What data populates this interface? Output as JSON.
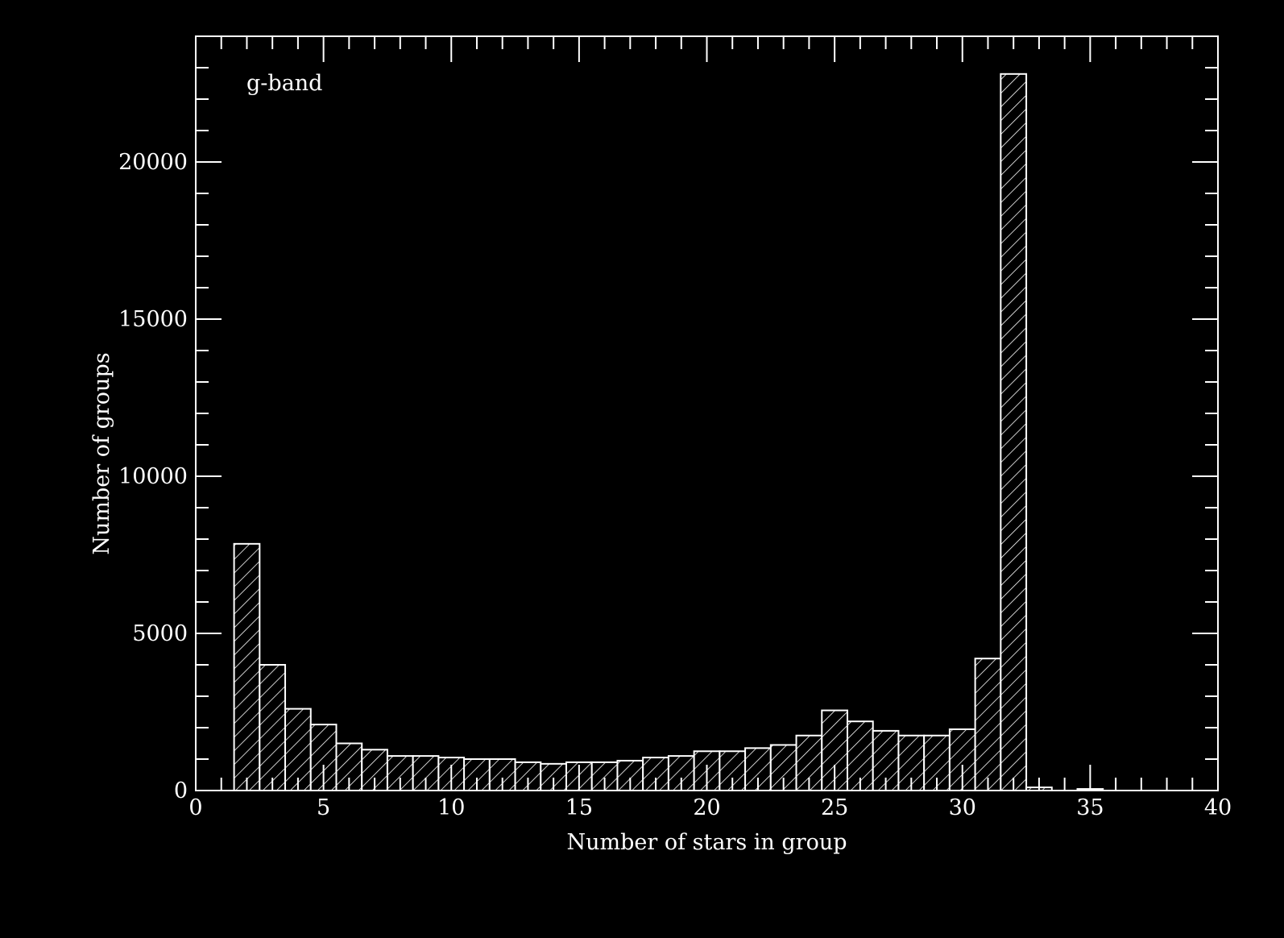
{
  "chart_data": {
    "type": "bar",
    "annotation": "g-band",
    "xlabel": "Number of stars in group",
    "ylabel": "Number of groups",
    "xlim": [
      0,
      40
    ],
    "ylim": [
      0,
      24000
    ],
    "x_ticks": [
      0,
      5,
      10,
      15,
      20,
      25,
      30,
      35,
      40
    ],
    "y_ticks": [
      0,
      5000,
      10000,
      15000,
      20000
    ],
    "bin_width": 1,
    "bin_centers": [
      2,
      3,
      4,
      5,
      6,
      7,
      8,
      9,
      10,
      11,
      12,
      13,
      14,
      15,
      16,
      17,
      18,
      19,
      20,
      21,
      22,
      23,
      24,
      25,
      26,
      27,
      28,
      29,
      30,
      31,
      32,
      33,
      34,
      35
    ],
    "values": [
      7850,
      4000,
      2600,
      2100,
      1500,
      1300,
      1100,
      1100,
      1050,
      1000,
      1000,
      900,
      850,
      900,
      900,
      950,
      1050,
      1100,
      1250,
      1250,
      1350,
      1450,
      1750,
      2550,
      2200,
      1900,
      1750,
      1750,
      1950,
      4200,
      22800,
      100,
      0,
      50
    ],
    "grid": false,
    "colors": {
      "background": "#000000",
      "foreground": "#ffffff"
    }
  }
}
